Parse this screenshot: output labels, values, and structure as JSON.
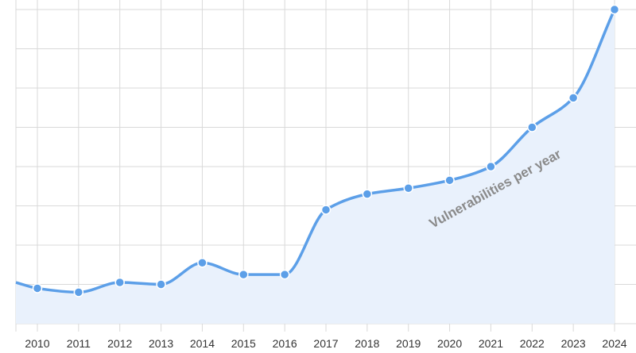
{
  "chart_data": {
    "type": "area",
    "x": [
      "2010",
      "2011",
      "2012",
      "2013",
      "2014",
      "2015",
      "2016",
      "2017",
      "2018",
      "2019",
      "2020",
      "2021",
      "2022",
      "2023",
      "2024"
    ],
    "series": [
      {
        "values": [
          0.9,
          0.8,
          1.05,
          1.0,
          1.55,
          1.25,
          1.25,
          2.9,
          3.3,
          3.45,
          3.65,
          4.0,
          5.0,
          5.75,
          8.0
        ]
      }
    ],
    "left_edge_value": 1.05,
    "ylim": [
      0,
      8
    ],
    "y_gridlines": 8,
    "grid": true,
    "y_tick_labels_visible": false,
    "annotation": "Vulnerabilities per year",
    "colors": {
      "line": "#5c9fe8",
      "fill": "#e9f1fc",
      "grid": "#d9d9d9"
    }
  }
}
